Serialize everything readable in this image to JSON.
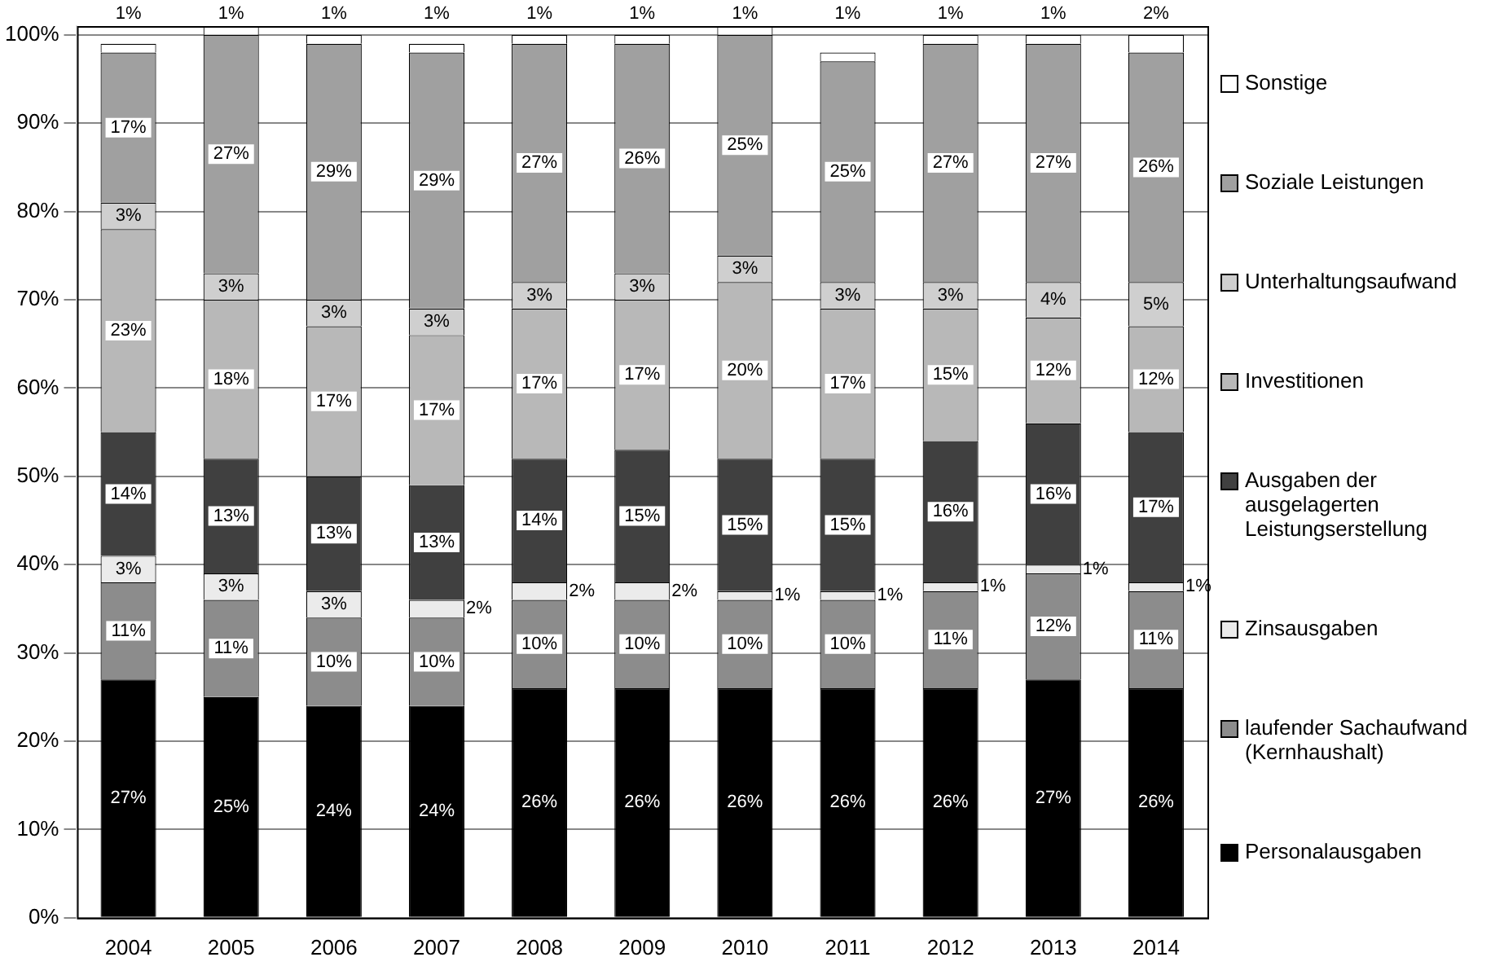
{
  "chart_data": {
    "type": "bar",
    "stacked": true,
    "categories": [
      "2004",
      "2005",
      "2006",
      "2007",
      "2008",
      "2009",
      "2010",
      "2011",
      "2012",
      "2013",
      "2014"
    ],
    "ylim": [
      0,
      101
    ],
    "yticks": [
      {
        "value": 0,
        "label": "0%"
      },
      {
        "value": 10,
        "label": "10%"
      },
      {
        "value": 20,
        "label": "20%"
      },
      {
        "value": 30,
        "label": "30%"
      },
      {
        "value": 40,
        "label": "40%"
      },
      {
        "value": 50,
        "label": "50%"
      },
      {
        "value": 60,
        "label": "60%"
      },
      {
        "value": 70,
        "label": "70%"
      },
      {
        "value": 80,
        "label": "80%"
      },
      {
        "value": 90,
        "label": "90%"
      },
      {
        "value": 100,
        "label": "100%"
      }
    ],
    "grid": "y",
    "legend": "right",
    "series": [
      {
        "name": "Personalausgaben",
        "color": "#000000",
        "values": [
          27,
          25,
          24,
          24,
          26,
          26,
          26,
          26,
          26,
          27,
          26
        ],
        "value_labels": [
          "27%",
          "25%",
          "24%",
          "24%",
          "26%",
          "26%",
          "26%",
          "26%",
          "26%",
          "27%",
          "26%"
        ]
      },
      {
        "name": "laufender Sachaufwand (Kernhaushalt)",
        "color": "#8c8c8c",
        "values": [
          11,
          11,
          10,
          10,
          10,
          10,
          10,
          10,
          11,
          12,
          11
        ],
        "value_labels": [
          "11%",
          "11%",
          "10%",
          "10%",
          "10%",
          "10%",
          "10%",
          "10%",
          "11%",
          "12%",
          "11%"
        ]
      },
      {
        "name": "Zinsausgaben",
        "color": "#ebebeb",
        "values": [
          3,
          3,
          3,
          2,
          2,
          2,
          1,
          1,
          1,
          1,
          1
        ],
        "value_labels": [
          "3%",
          "3%",
          "3%",
          "2%",
          "2%",
          "2%",
          "1%",
          "1%",
          "1%",
          "1%",
          "1%"
        ]
      },
      {
        "name": "Ausgaben der ausgelagerten Leistungserstellung",
        "color": "#404040",
        "values": [
          14,
          13,
          13,
          13,
          14,
          15,
          15,
          15,
          16,
          16,
          17
        ],
        "value_labels": [
          "14%",
          "13%",
          "13%",
          "13%",
          "14%",
          "15%",
          "15%",
          "15%",
          "16%",
          "16%",
          "17%"
        ]
      },
      {
        "name": "Investitionen",
        "color": "#b8b8b8",
        "values": [
          23,
          18,
          17,
          17,
          17,
          17,
          20,
          17,
          15,
          12,
          12
        ],
        "value_labels": [
          "23%",
          "18%",
          "17%",
          "17%",
          "17%",
          "17%",
          "20%",
          "17%",
          "15%",
          "12%",
          "12%"
        ]
      },
      {
        "name": "Unterhaltungsaufwand",
        "color": "#cfcfcf",
        "values": [
          3,
          3,
          3,
          3,
          3,
          3,
          3,
          3,
          3,
          4,
          5
        ],
        "value_labels": [
          "3%",
          "3%",
          "3%",
          "3%",
          "3%",
          "3%",
          "3%",
          "3%",
          "3%",
          "4%",
          "5%"
        ]
      },
      {
        "name": "Soziale Leistungen",
        "color": "#a0a0a0",
        "values": [
          17,
          27,
          29,
          29,
          27,
          26,
          25,
          25,
          27,
          27,
          26
        ],
        "value_labels": [
          "17%",
          "27%",
          "29%",
          "29%",
          "27%",
          "26%",
          "25%",
          "25%",
          "27%",
          "27%",
          "26%"
        ]
      },
      {
        "name": "Sonstige",
        "color": "#ffffff",
        "values": [
          1,
          1,
          1,
          1,
          1,
          1,
          1,
          1,
          1,
          1,
          2
        ],
        "value_labels": [
          "1%",
          "1%",
          "1%",
          "1%",
          "1%",
          "1%",
          "1%",
          "1%",
          "1%",
          "1%",
          "2%"
        ]
      }
    ]
  }
}
